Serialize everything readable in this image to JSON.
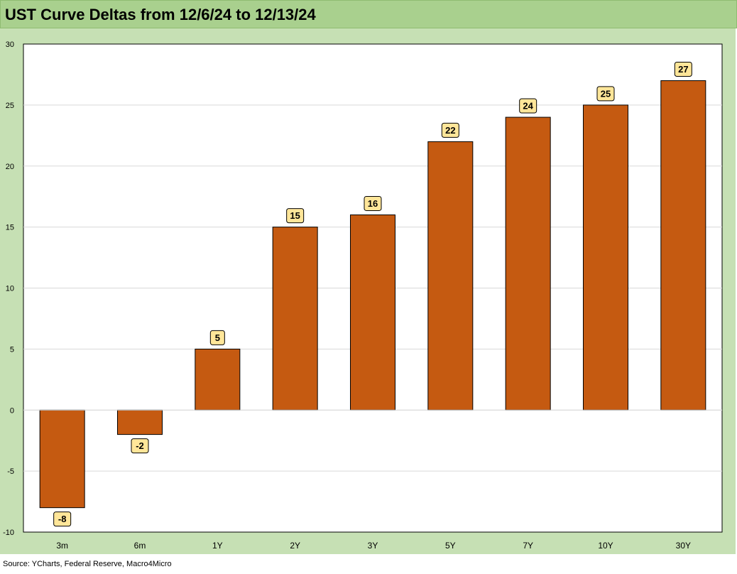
{
  "title": "UST Curve Deltas from 12/6/24 to 12/13/24",
  "source": "Source: YCharts, Federal Reserve, Macro4Micro",
  "colors": {
    "bar": "#c55a11",
    "label_box": "#ffe699",
    "title_bg": "#a9d08e",
    "panel_bg": "#c6e0b4"
  },
  "chart_data": {
    "type": "bar",
    "categories": [
      "3m",
      "6m",
      "1Y",
      "2Y",
      "3Y",
      "5Y",
      "7Y",
      "10Y",
      "30Y"
    ],
    "values": [
      -8,
      -2,
      5,
      15,
      16,
      22,
      24,
      25,
      27
    ],
    "ylim": [
      -10,
      30
    ],
    "yticks": [
      30,
      25,
      20,
      15,
      10,
      5,
      0,
      -5,
      -10
    ],
    "grid": true,
    "legend": "none"
  }
}
